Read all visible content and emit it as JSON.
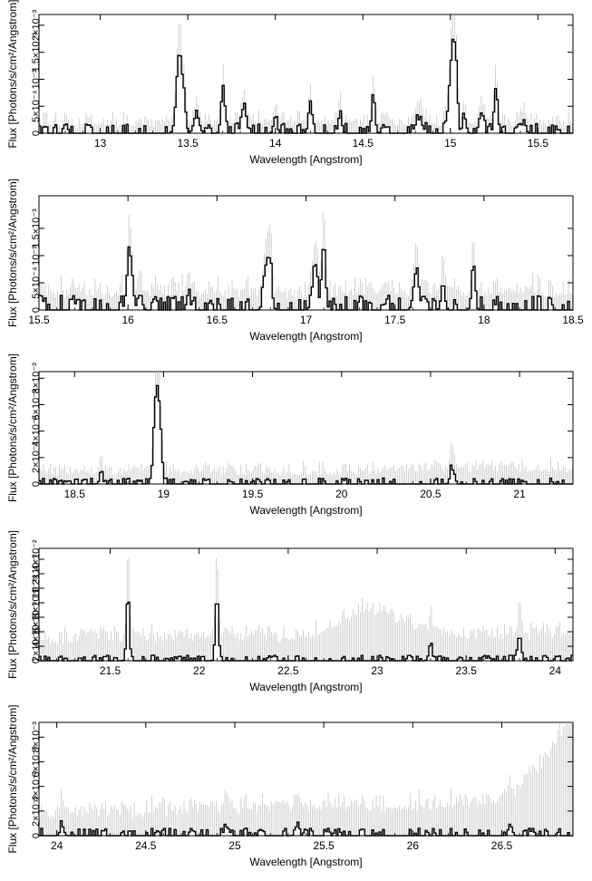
{
  "chart_data": [
    {
      "type": "line",
      "xlabel": "Wavelength [Angstrom]",
      "ylabel": "Flux [Photons/s/cm²/Angstrom]",
      "xlim": [
        12.65,
        15.7
      ],
      "ylim": [
        0,
        0.0022
      ],
      "xticks": [
        13,
        13.5,
        14,
        14.5,
        15,
        15.5
      ],
      "yticks": [
        {
          "value": 0,
          "label": "0"
        },
        {
          "value": 0.0005,
          "label": "5×10⁻⁴"
        },
        {
          "value": 0.001,
          "label": "10⁻³"
        },
        {
          "value": 0.0015,
          "label": "1.5×10⁻³"
        },
        {
          "value": 0.002,
          "label": "2×10⁻³"
        }
      ],
      "background": {
        "base": 8e-05,
        "slope": 0.0
      },
      "lines": [
        [
          13.45,
          0.00145,
          0.015
        ],
        [
          13.48,
          0.0005,
          0.01
        ],
        [
          13.55,
          0.00035,
          0.015
        ],
        [
          13.7,
          0.0008,
          0.01
        ],
        [
          13.82,
          0.0004,
          0.015
        ],
        [
          14.0,
          0.0003,
          0.01
        ],
        [
          14.2,
          0.0006,
          0.01
        ],
        [
          14.37,
          0.00035,
          0.01
        ],
        [
          14.56,
          0.0006,
          0.01
        ],
        [
          14.82,
          0.00025,
          0.02
        ],
        [
          15.01,
          0.00145,
          0.015
        ],
        [
          15.03,
          0.0009,
          0.01
        ],
        [
          15.08,
          0.0003,
          0.01
        ],
        [
          15.18,
          0.0004,
          0.01
        ],
        [
          15.26,
          0.00085,
          0.01
        ],
        [
          15.42,
          0.00025,
          0.01
        ]
      ],
      "noise_amp": 0.00012,
      "err_amp": 0.00025
    },
    {
      "type": "line",
      "xlabel": "Wavelength [Angstrom]",
      "ylabel": "Flux [Photons/s/cm²/Angstrom]",
      "xlim": [
        15.5,
        18.5
      ],
      "ylim": [
        0,
        0.0021
      ],
      "xticks": [
        15.5,
        16,
        16.5,
        17,
        17.5,
        18,
        18.5
      ],
      "yticks": [
        {
          "value": 0,
          "label": "0"
        },
        {
          "value": 0.0005,
          "label": "5×10⁻⁴"
        },
        {
          "value": 0.001,
          "label": "10⁻³"
        },
        {
          "value": 0.0015,
          "label": "1.5×10⁻³"
        }
      ],
      "background": {
        "base": 0.00012,
        "slope": 2e-05
      },
      "lines": [
        [
          16.01,
          0.00105,
          0.015
        ],
        [
          16.07,
          0.0003,
          0.01
        ],
        [
          16.34,
          0.0003,
          0.01
        ],
        [
          16.78,
          0.00085,
          0.015
        ],
        [
          16.8,
          0.0005,
          0.01
        ],
        [
          17.05,
          0.0007,
          0.015
        ],
        [
          17.1,
          0.00125,
          0.01
        ],
        [
          17.62,
          0.0007,
          0.015
        ],
        [
          17.77,
          0.0005,
          0.01
        ],
        [
          17.94,
          0.00065,
          0.01
        ]
      ],
      "noise_amp": 0.00018,
      "err_amp": 0.00035
    },
    {
      "type": "line",
      "xlabel": "Wavelength [Angstrom]",
      "ylabel": "Flux [Photons/s/cm²/Angstrom]",
      "xlim": [
        18.3,
        21.3
      ],
      "ylim": [
        0,
        0.0085
      ],
      "xticks": [
        18.5,
        19,
        19.5,
        20,
        20.5,
        21
      ],
      "yticks": [
        {
          "value": 0,
          "label": "0"
        },
        {
          "value": 0.002,
          "label": "2×10⁻³"
        },
        {
          "value": 0.004,
          "label": "4×10⁻³"
        },
        {
          "value": 0.006,
          "label": "6×10⁻³"
        },
        {
          "value": 0.008,
          "label": "8×10⁻³"
        }
      ],
      "background": {
        "base": 0.00025,
        "slope": 0.00018
      },
      "lines": [
        [
          18.97,
          0.0065,
          0.015
        ],
        [
          18.95,
          0.003,
          0.01
        ],
        [
          18.65,
          0.0006,
          0.01
        ],
        [
          20.62,
          0.0012,
          0.01
        ]
      ],
      "noise_amp": 0.0003,
      "err_amp": 0.0012
    },
    {
      "type": "line",
      "xlabel": "Wavelength [Angstrom]",
      "ylabel": "Flux [Photons/s/cm²/Angstrom]",
      "xlim": [
        21.1,
        24.1
      ],
      "ylim": [
        0,
        0.0155
      ],
      "xticks": [
        21.5,
        22,
        22.5,
        23,
        23.5,
        24
      ],
      "yticks": [
        {
          "value": 0,
          "label": "0"
        },
        {
          "value": 0.002,
          "label": "2×10⁻³"
        },
        {
          "value": 0.004,
          "label": "4×10⁻³"
        },
        {
          "value": 0.006,
          "label": "6×10⁻³"
        },
        {
          "value": 0.008,
          "label": "8×10⁻³"
        },
        {
          "value": 0.01,
          "label": "10⁻²"
        },
        {
          "value": 0.012,
          "label": "1.2×10⁻²"
        },
        {
          "value": 0.014,
          "label": "1.4×10⁻²"
        }
      ],
      "background": {
        "base": 0.002,
        "slope": 0.0001
      },
      "lines": [
        [
          21.6,
          0.0095,
          0.008
        ],
        [
          22.1,
          0.0095,
          0.008
        ],
        [
          23.8,
          0.0035,
          0.01
        ],
        [
          23.3,
          0.002,
          0.01
        ]
      ],
      "hump": [
        22.95,
        0.0035,
        0.18
      ],
      "noise_amp": 0.0005,
      "err_amp": 0.003
    },
    {
      "type": "line",
      "xlabel": "Wavelength [Angstrom]",
      "ylabel": "Flux [Photons/s/cm²/Angstrom]",
      "xlim": [
        23.9,
        26.9
      ],
      "ylim": [
        0,
        0.0092
      ],
      "xticks": [
        24,
        24.5,
        25,
        25.5,
        26,
        26.5
      ],
      "yticks": [
        {
          "value": 0,
          "label": "0"
        },
        {
          "value": 0.002,
          "label": "2×10⁻³"
        },
        {
          "value": 0.004,
          "label": "4×10⁻³"
        },
        {
          "value": 0.006,
          "label": "6×10⁻³"
        },
        {
          "value": 0.008,
          "label": "8×10⁻³"
        }
      ],
      "background": {
        "base": 0.001,
        "slope": 0.0004
      },
      "edge": [
        26.45,
        0.007
      ],
      "lines": [
        [
          24.03,
          0.0008,
          0.01
        ],
        [
          24.95,
          0.0008,
          0.01
        ],
        [
          25.35,
          0.0008,
          0.01
        ],
        [
          26.55,
          0.0008,
          0.01
        ]
      ],
      "noise_amp": 0.0004,
      "err_amp": 0.0018
    }
  ]
}
